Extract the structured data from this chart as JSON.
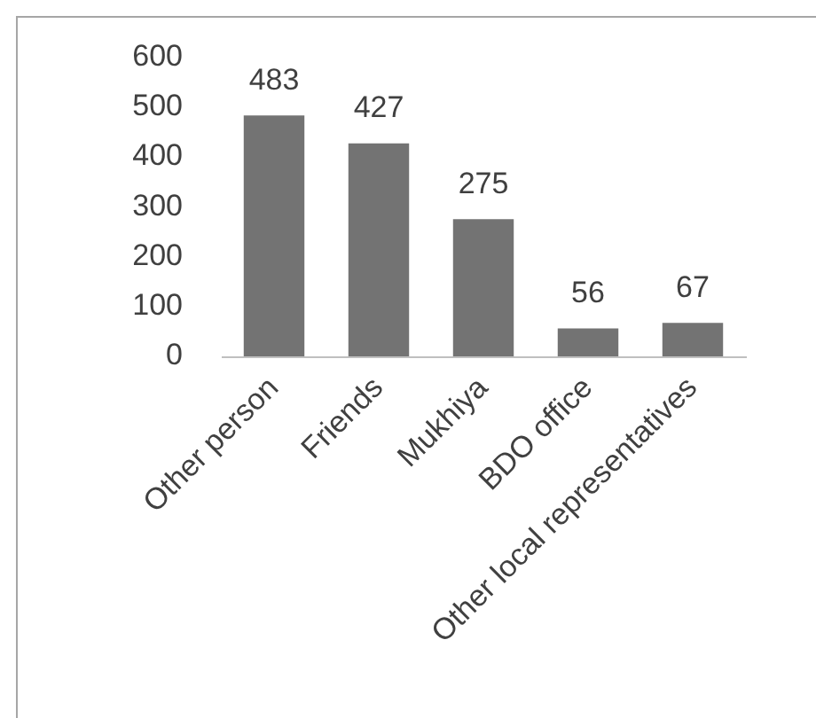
{
  "chart_data": {
    "type": "bar",
    "categories": [
      "Other person",
      "Friends",
      "Mukhiya",
      "BDO office",
      "Other local representatives"
    ],
    "values": [
      483,
      427,
      275,
      56,
      67
    ],
    "color": "#737373",
    "ylim": [
      0,
      600
    ],
    "yticks": [
      0,
      100,
      200,
      300,
      400,
      500,
      600
    ],
    "grid": false,
    "legend": false,
    "data_labels": true
  }
}
